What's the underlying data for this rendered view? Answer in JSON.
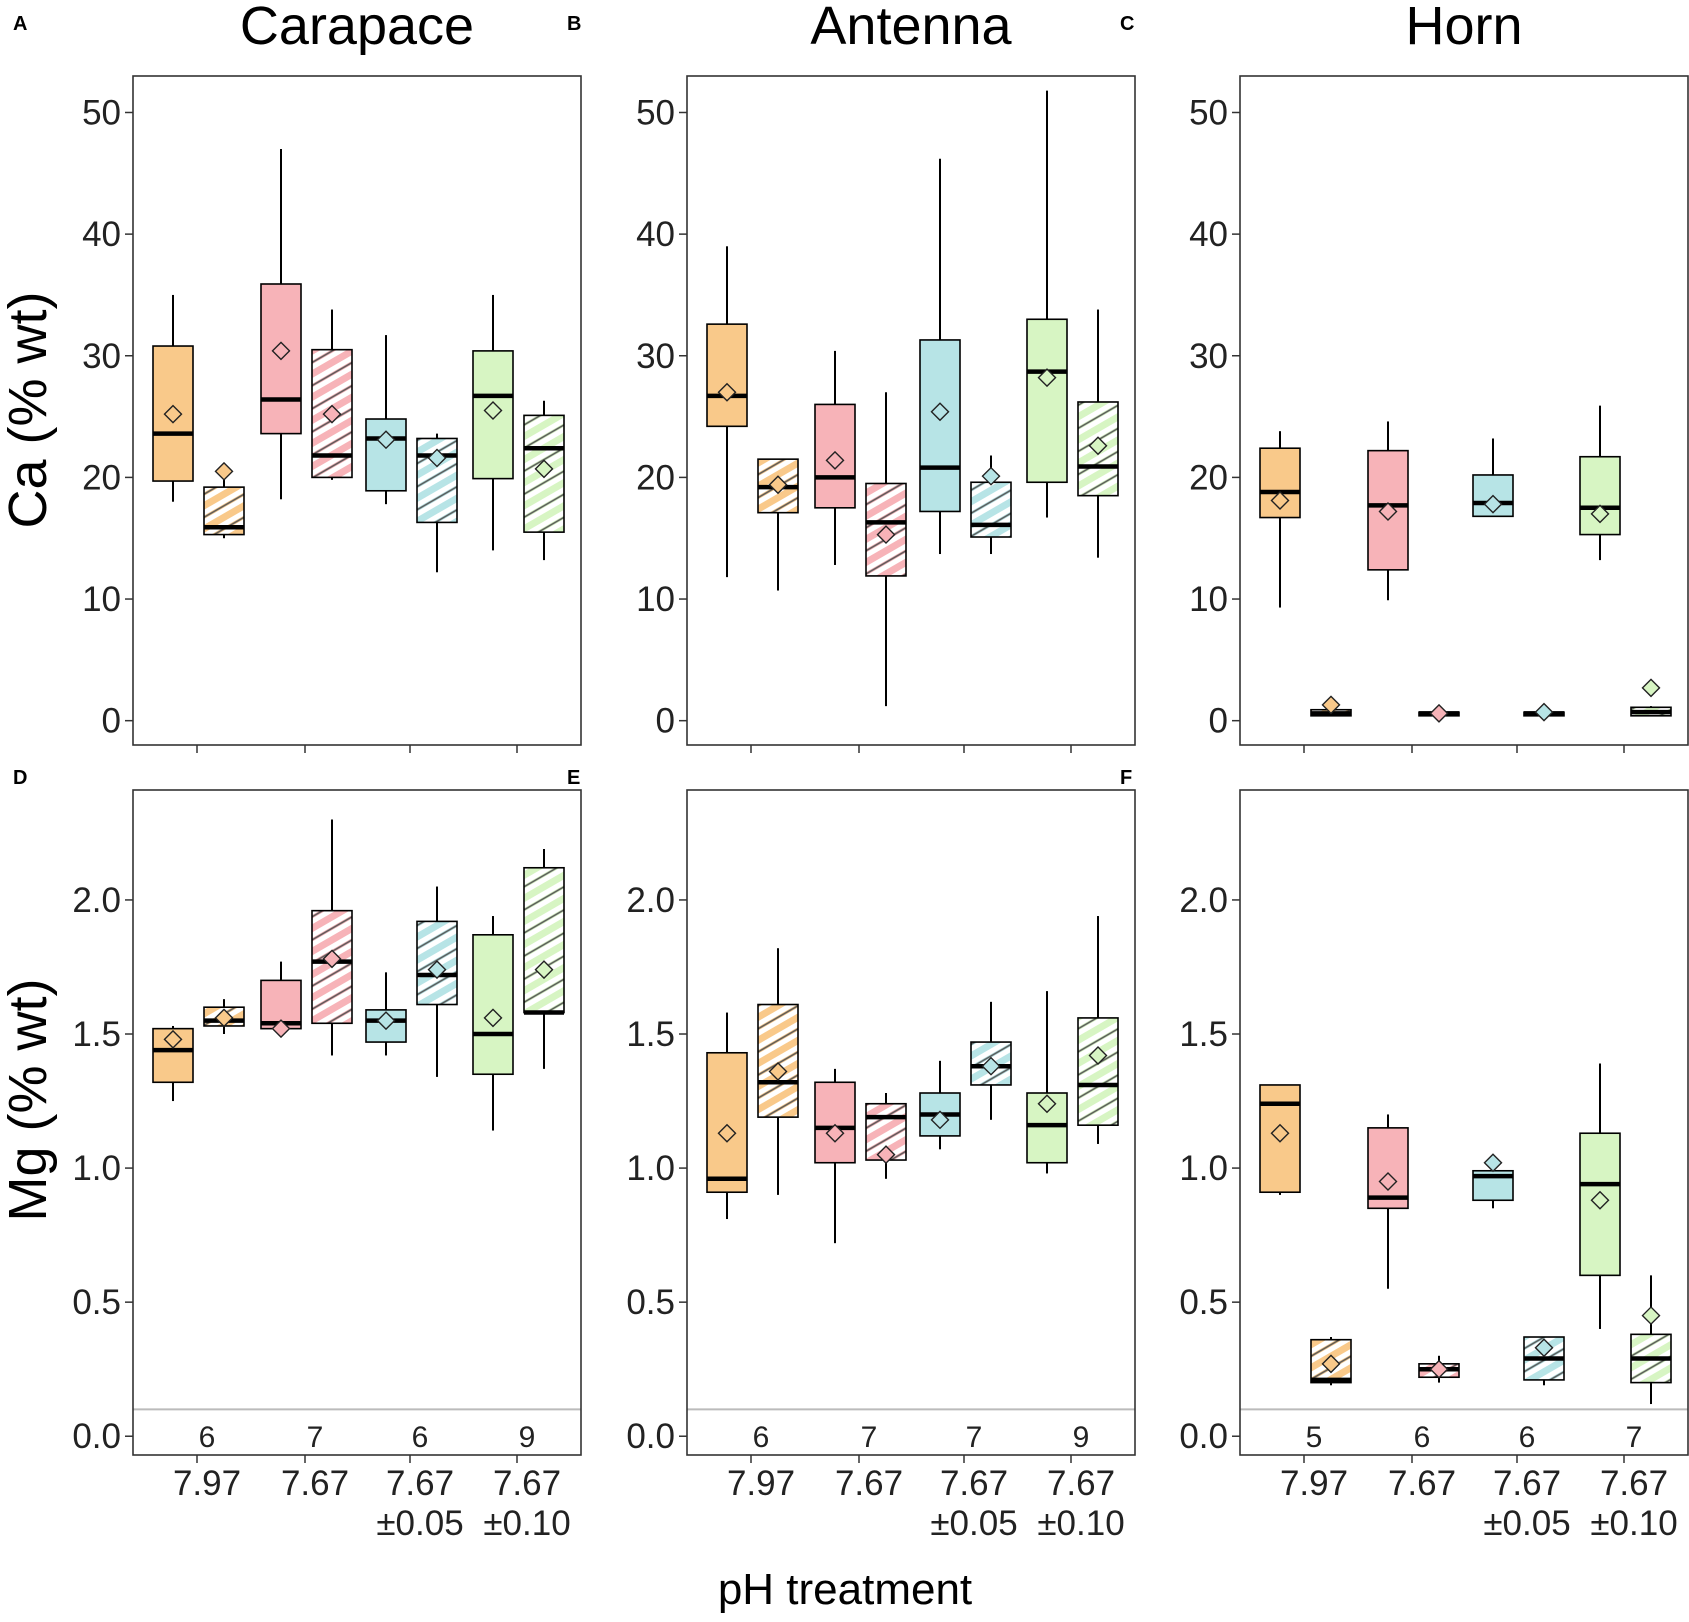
{
  "colors": {
    "7.97": "#f9c98a",
    "7.67": "#f7b3b8",
    "7.67±0.05": "#b7e4e6",
    "7.67±0.10": "#d7f5c3",
    "outline": "#000000",
    "ref_line": "#bbbbbb"
  },
  "axis_titles": {
    "x": "pH treatment",
    "ca_y": "Ca (% wt)",
    "mg_y": "Mg (% wt)"
  },
  "category_labels": [
    {
      "line1": "7.97",
      "line2": ""
    },
    {
      "line1": "7.67",
      "line2": ""
    },
    {
      "line1": "7.67",
      "line2": "±0.05"
    },
    {
      "line1": "7.67",
      "line2": "±0.10"
    }
  ],
  "chart_data": [
    {
      "panel": "A",
      "title": "Carapace",
      "type": "box",
      "element": "Ca",
      "ylim": [
        -2,
        53
      ],
      "yticks": [
        0,
        10,
        20,
        30,
        40,
        50
      ],
      "ytick_labels": [
        "0",
        "10",
        "20",
        "30",
        "40",
        "50"
      ],
      "categories": [
        "7.97",
        "7.67",
        "7.67±0.05",
        "7.67±0.10"
      ],
      "boxes": [
        {
          "cat": 0,
          "hatched": false,
          "min": 18,
          "q1": 19.7,
          "median": 23.6,
          "q3": 30.8,
          "max": 35,
          "mean": 25.2
        },
        {
          "cat": 0,
          "hatched": true,
          "min": 15,
          "q1": 15.3,
          "median": 15.9,
          "q3": 19.2,
          "max": 20.5,
          "mean": 20.5
        },
        {
          "cat": 1,
          "hatched": false,
          "min": 18.2,
          "q1": 23.6,
          "median": 26.4,
          "q3": 35.9,
          "max": 47,
          "mean": 30.4
        },
        {
          "cat": 1,
          "hatched": true,
          "min": 19.8,
          "q1": 20,
          "median": 21.8,
          "q3": 30.5,
          "max": 33.8,
          "mean": 25.2
        },
        {
          "cat": 2,
          "hatched": false,
          "min": 17.8,
          "q1": 18.9,
          "median": 23.2,
          "q3": 24.8,
          "max": 31.7,
          "mean": 23.1
        },
        {
          "cat": 2,
          "hatched": true,
          "min": 12.2,
          "q1": 16.3,
          "median": 21.8,
          "q3": 23.2,
          "max": 23.6,
          "mean": 21.6
        },
        {
          "cat": 3,
          "hatched": false,
          "min": 14,
          "q1": 19.9,
          "median": 26.7,
          "q3": 30.4,
          "max": 35,
          "mean": 25.5
        },
        {
          "cat": 3,
          "hatched": true,
          "min": 13.2,
          "q1": 15.5,
          "median": 22.4,
          "q3": 25.1,
          "max": 26.3,
          "mean": 20.7
        }
      ],
      "n_labels": []
    },
    {
      "panel": "B",
      "title": "Antenna",
      "type": "box",
      "element": "Ca",
      "ylim": [
        -2,
        53
      ],
      "yticks": [
        0,
        10,
        20,
        30,
        40,
        50
      ],
      "ytick_labels": [
        "0",
        "10",
        "20",
        "30",
        "40",
        "50"
      ],
      "categories": [
        "7.97",
        "7.67",
        "7.67±0.05",
        "7.67±0.10"
      ],
      "boxes": [
        {
          "cat": 0,
          "hatched": false,
          "min": 11.8,
          "q1": 24.2,
          "median": 26.7,
          "q3": 32.6,
          "max": 39,
          "mean": 27
        },
        {
          "cat": 0,
          "hatched": true,
          "min": 10.7,
          "q1": 17.1,
          "median": 19.2,
          "q3": 21.5,
          "max": 21.5,
          "mean": 19.4
        },
        {
          "cat": 1,
          "hatched": false,
          "min": 12.8,
          "q1": 17.5,
          "median": 20,
          "q3": 26,
          "max": 30.4,
          "mean": 21.4
        },
        {
          "cat": 1,
          "hatched": true,
          "min": 1.2,
          "q1": 11.9,
          "median": 16.3,
          "q3": 19.5,
          "max": 27,
          "mean": 15.3
        },
        {
          "cat": 2,
          "hatched": false,
          "min": 13.7,
          "q1": 17.2,
          "median": 20.8,
          "q3": 31.3,
          "max": 46.2,
          "mean": 25.4
        },
        {
          "cat": 2,
          "hatched": true,
          "min": 13.7,
          "q1": 15.1,
          "median": 16.1,
          "q3": 19.6,
          "max": 21.8,
          "mean": 20.1
        },
        {
          "cat": 3,
          "hatched": false,
          "min": 16.7,
          "q1": 19.6,
          "median": 28.7,
          "q3": 33,
          "max": 51.8,
          "mean": 28.2
        },
        {
          "cat": 3,
          "hatched": true,
          "min": 13.4,
          "q1": 18.5,
          "median": 20.9,
          "q3": 26.2,
          "max": 33.8,
          "mean": 22.6
        }
      ],
      "n_labels": []
    },
    {
      "panel": "C",
      "title": "Horn",
      "type": "box",
      "element": "Ca",
      "ylim": [
        -2,
        53
      ],
      "yticks": [
        0,
        10,
        20,
        30,
        40,
        50
      ],
      "ytick_labels": [
        "0",
        "10",
        "20",
        "30",
        "40",
        "50"
      ],
      "categories": [
        "7.97",
        "7.67",
        "7.67±0.05",
        "7.67±0.10"
      ],
      "boxes": [
        {
          "cat": 0,
          "hatched": false,
          "min": 9.3,
          "q1": 16.7,
          "median": 18.8,
          "q3": 22.4,
          "max": 23.8,
          "mean": 18.1
        },
        {
          "cat": 0,
          "hatched": true,
          "min": 0.4,
          "q1": 0.4,
          "median": 0.6,
          "q3": 0.9,
          "max": 1.2,
          "mean": 1.3
        },
        {
          "cat": 1,
          "hatched": false,
          "min": 9.9,
          "q1": 12.4,
          "median": 17.7,
          "q3": 22.2,
          "max": 24.6,
          "mean": 17.2
        },
        {
          "cat": 1,
          "hatched": true,
          "min": 0.4,
          "q1": 0.4,
          "median": 0.6,
          "q3": 0.7,
          "max": 0.8,
          "mean": 0.6
        },
        {
          "cat": 2,
          "hatched": false,
          "min": 16.8,
          "q1": 16.8,
          "median": 17.9,
          "q3": 20.2,
          "max": 23.2,
          "mean": 17.8
        },
        {
          "cat": 2,
          "hatched": true,
          "min": 0.4,
          "q1": 0.4,
          "median": 0.6,
          "q3": 0.7,
          "max": 0.8,
          "mean": 0.7
        },
        {
          "cat": 3,
          "hatched": false,
          "min": 13.2,
          "q1": 15.3,
          "median": 17.5,
          "q3": 21.7,
          "max": 25.9,
          "mean": 17
        },
        {
          "cat": 3,
          "hatched": true,
          "min": 0.4,
          "q1": 0.4,
          "median": 0.7,
          "q3": 1.1,
          "max": 1.2,
          "mean": 2.7
        }
      ],
      "n_labels": []
    },
    {
      "panel": "D",
      "title": "",
      "type": "box",
      "element": "Mg",
      "ylim": [
        -0.07,
        2.41
      ],
      "yticks": [
        0,
        0.5,
        1,
        1.5,
        2
      ],
      "ytick_labels": [
        "0.0",
        "0.5",
        "1.0",
        "1.5",
        "2.0"
      ],
      "ref_line": 0.1,
      "categories": [
        "7.97",
        "7.67",
        "7.67±0.05",
        "7.67±0.10"
      ],
      "boxes": [
        {
          "cat": 0,
          "hatched": false,
          "min": 1.25,
          "q1": 1.32,
          "median": 1.44,
          "q3": 1.52,
          "max": 1.53,
          "mean": 1.48
        },
        {
          "cat": 0,
          "hatched": true,
          "min": 1.5,
          "q1": 1.53,
          "median": 1.55,
          "q3": 1.6,
          "max": 1.63,
          "mean": 1.56
        },
        {
          "cat": 1,
          "hatched": false,
          "min": 1.5,
          "q1": 1.52,
          "median": 1.54,
          "q3": 1.7,
          "max": 1.77,
          "mean": 1.52
        },
        {
          "cat": 1,
          "hatched": true,
          "min": 1.42,
          "q1": 1.54,
          "median": 1.77,
          "q3": 1.96,
          "max": 2.3,
          "mean": 1.78
        },
        {
          "cat": 2,
          "hatched": false,
          "min": 1.42,
          "q1": 1.47,
          "median": 1.55,
          "q3": 1.59,
          "max": 1.73,
          "mean": 1.55
        },
        {
          "cat": 2,
          "hatched": true,
          "min": 1.34,
          "q1": 1.61,
          "median": 1.72,
          "q3": 1.92,
          "max": 2.05,
          "mean": 1.74
        },
        {
          "cat": 3,
          "hatched": false,
          "min": 1.14,
          "q1": 1.35,
          "median": 1.5,
          "q3": 1.87,
          "max": 1.94,
          "mean": 1.56
        },
        {
          "cat": 3,
          "hatched": true,
          "min": 1.37,
          "q1": 1.58,
          "median": 1.58,
          "q3": 2.12,
          "max": 2.19,
          "mean": 1.74
        }
      ],
      "n_labels": [
        "6",
        "7",
        "6",
        "9"
      ]
    },
    {
      "panel": "E",
      "title": "",
      "type": "box",
      "element": "Mg",
      "ylim": [
        -0.07,
        2.41
      ],
      "yticks": [
        0,
        0.5,
        1,
        1.5,
        2
      ],
      "ytick_labels": [
        "0.0",
        "0.5",
        "1.0",
        "1.5",
        "2.0"
      ],
      "ref_line": 0.1,
      "categories": [
        "7.97",
        "7.67",
        "7.67±0.05",
        "7.67±0.10"
      ],
      "boxes": [
        {
          "cat": 0,
          "hatched": false,
          "min": 0.81,
          "q1": 0.91,
          "median": 0.96,
          "q3": 1.43,
          "max": 1.58,
          "mean": 1.13
        },
        {
          "cat": 0,
          "hatched": true,
          "min": 0.9,
          "q1": 1.19,
          "median": 1.32,
          "q3": 1.61,
          "max": 1.82,
          "mean": 1.36
        },
        {
          "cat": 1,
          "hatched": false,
          "min": 0.72,
          "q1": 1.02,
          "median": 1.15,
          "q3": 1.32,
          "max": 1.37,
          "mean": 1.13
        },
        {
          "cat": 1,
          "hatched": true,
          "min": 0.96,
          "q1": 1.03,
          "median": 1.19,
          "q3": 1.24,
          "max": 1.28,
          "mean": 1.05
        },
        {
          "cat": 2,
          "hatched": false,
          "min": 1.07,
          "q1": 1.12,
          "median": 1.2,
          "q3": 1.28,
          "max": 1.4,
          "mean": 1.18
        },
        {
          "cat": 2,
          "hatched": true,
          "min": 1.18,
          "q1": 1.31,
          "median": 1.38,
          "q3": 1.47,
          "max": 1.62,
          "mean": 1.38
        },
        {
          "cat": 3,
          "hatched": false,
          "min": 0.98,
          "q1": 1.02,
          "median": 1.16,
          "q3": 1.28,
          "max": 1.66,
          "mean": 1.24
        },
        {
          "cat": 3,
          "hatched": true,
          "min": 1.09,
          "q1": 1.16,
          "median": 1.31,
          "q3": 1.56,
          "max": 1.94,
          "mean": 1.42
        }
      ],
      "n_labels": [
        "6",
        "7",
        "7",
        "9"
      ]
    },
    {
      "panel": "F",
      "title": "",
      "type": "box",
      "element": "Mg",
      "ylim": [
        -0.07,
        2.41
      ],
      "yticks": [
        0,
        0.5,
        1,
        1.5,
        2
      ],
      "ytick_labels": [
        "0.0",
        "0.5",
        "1.0",
        "1.5",
        "2.0"
      ],
      "ref_line": 0.1,
      "categories": [
        "7.97",
        "7.67",
        "7.67±0.05",
        "7.67±0.10"
      ],
      "boxes": [
        {
          "cat": 0,
          "hatched": false,
          "min": 0.9,
          "q1": 0.91,
          "median": 1.24,
          "q3": 1.31,
          "max": 1.31,
          "mean": 1.13
        },
        {
          "cat": 0,
          "hatched": true,
          "min": 0.19,
          "q1": 0.2,
          "median": 0.21,
          "q3": 0.36,
          "max": 0.37,
          "mean": 0.27
        },
        {
          "cat": 1,
          "hatched": false,
          "min": 0.55,
          "q1": 0.85,
          "median": 0.89,
          "q3": 1.15,
          "max": 1.2,
          "mean": 0.95
        },
        {
          "cat": 1,
          "hatched": true,
          "min": 0.2,
          "q1": 0.22,
          "median": 0.25,
          "q3": 0.27,
          "max": 0.3,
          "mean": 0.25
        },
        {
          "cat": 2,
          "hatched": false,
          "min": 0.85,
          "q1": 0.88,
          "median": 0.97,
          "q3": 0.99,
          "max": 1.0,
          "mean": 1.02
        },
        {
          "cat": 2,
          "hatched": true,
          "min": 0.19,
          "q1": 0.21,
          "median": 0.29,
          "q3": 0.37,
          "max": 0.37,
          "mean": 0.33
        },
        {
          "cat": 3,
          "hatched": false,
          "min": 0.4,
          "q1": 0.6,
          "median": 0.94,
          "q3": 1.13,
          "max": 1.39,
          "mean": 0.88
        },
        {
          "cat": 3,
          "hatched": true,
          "min": 0.12,
          "q1": 0.2,
          "median": 0.29,
          "q3": 0.38,
          "max": 0.6,
          "mean": 0.45
        }
      ],
      "n_labels": [
        "5",
        "6",
        "6",
        "7"
      ]
    }
  ]
}
